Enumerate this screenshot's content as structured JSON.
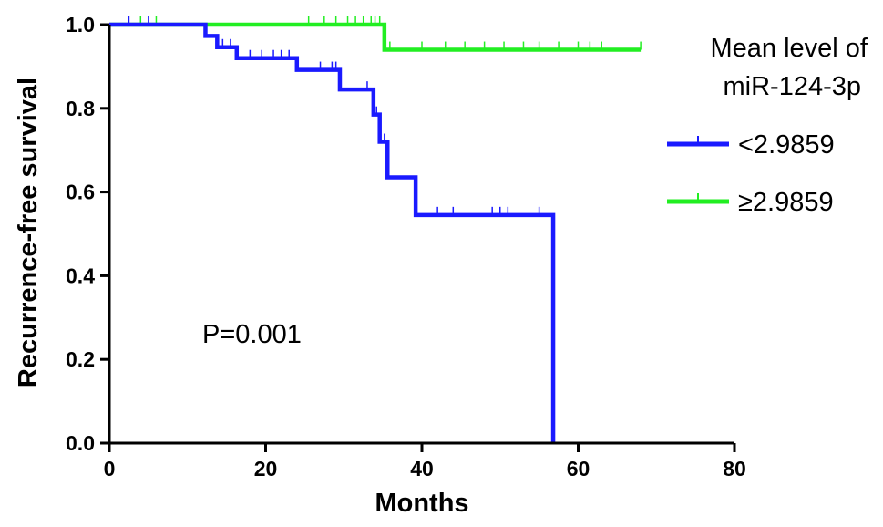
{
  "chart_data": {
    "type": "line",
    "subtype": "kaplan-meier",
    "xlabel": "Months",
    "ylabel": "Recurrence-free survival",
    "xlim": [
      0,
      80
    ],
    "ylim": [
      0,
      1.0
    ],
    "xticks": [
      0,
      20,
      40,
      60,
      80
    ],
    "yticks": [
      0.0,
      0.2,
      0.4,
      0.6,
      0.8,
      1.0
    ],
    "xtick_labels": [
      "0",
      "20",
      "40",
      "60",
      "80"
    ],
    "ytick_labels": [
      "0.0",
      "0.2",
      "0.4",
      "0.6",
      "0.8",
      "1.0"
    ],
    "grid": false,
    "legend": {
      "title_line1": "Mean level of",
      "title_line2": "miR-124-3p",
      "placement": "top-right"
    },
    "annotation": "P=0.001",
    "series": [
      {
        "name": "<2.9859",
        "color": "#1a1aff",
        "steps": [
          [
            0,
            1.0
          ],
          [
            12.3,
            0.973
          ],
          [
            13.8,
            0.946
          ],
          [
            16.3,
            0.92
          ],
          [
            24.0,
            0.892
          ],
          [
            29.5,
            0.845
          ],
          [
            33.8,
            0.785
          ],
          [
            34.6,
            0.72
          ],
          [
            35.6,
            0.635
          ],
          [
            39.2,
            0.545
          ],
          [
            56.8,
            0.0
          ]
        ],
        "censor_times": [
          2.5,
          5.0,
          14.5,
          15.5,
          18.0,
          19.5,
          21.0,
          22.0,
          23.0,
          27.0,
          28.5,
          29.0,
          33.0,
          34.2,
          35.2,
          42.0,
          44.0,
          49.0,
          50.0,
          51.0,
          55.0
        ],
        "end_x": 56.8
      },
      {
        "name": "≥2.9859",
        "color": "#22ee22",
        "steps": [
          [
            0,
            1.0
          ],
          [
            35.2,
            0.94
          ]
        ],
        "censor_times": [
          4.0,
          6.0,
          25.5,
          27.5,
          29.0,
          30.5,
          31.5,
          32.5,
          33.5,
          34.0,
          34.6,
          35.9,
          40.0,
          43.0,
          45.5,
          48.0,
          50.5,
          53.0,
          55.0,
          57.5,
          60.0,
          61.5,
          63.0,
          68.0
        ],
        "end_x": 68.0
      }
    ]
  }
}
